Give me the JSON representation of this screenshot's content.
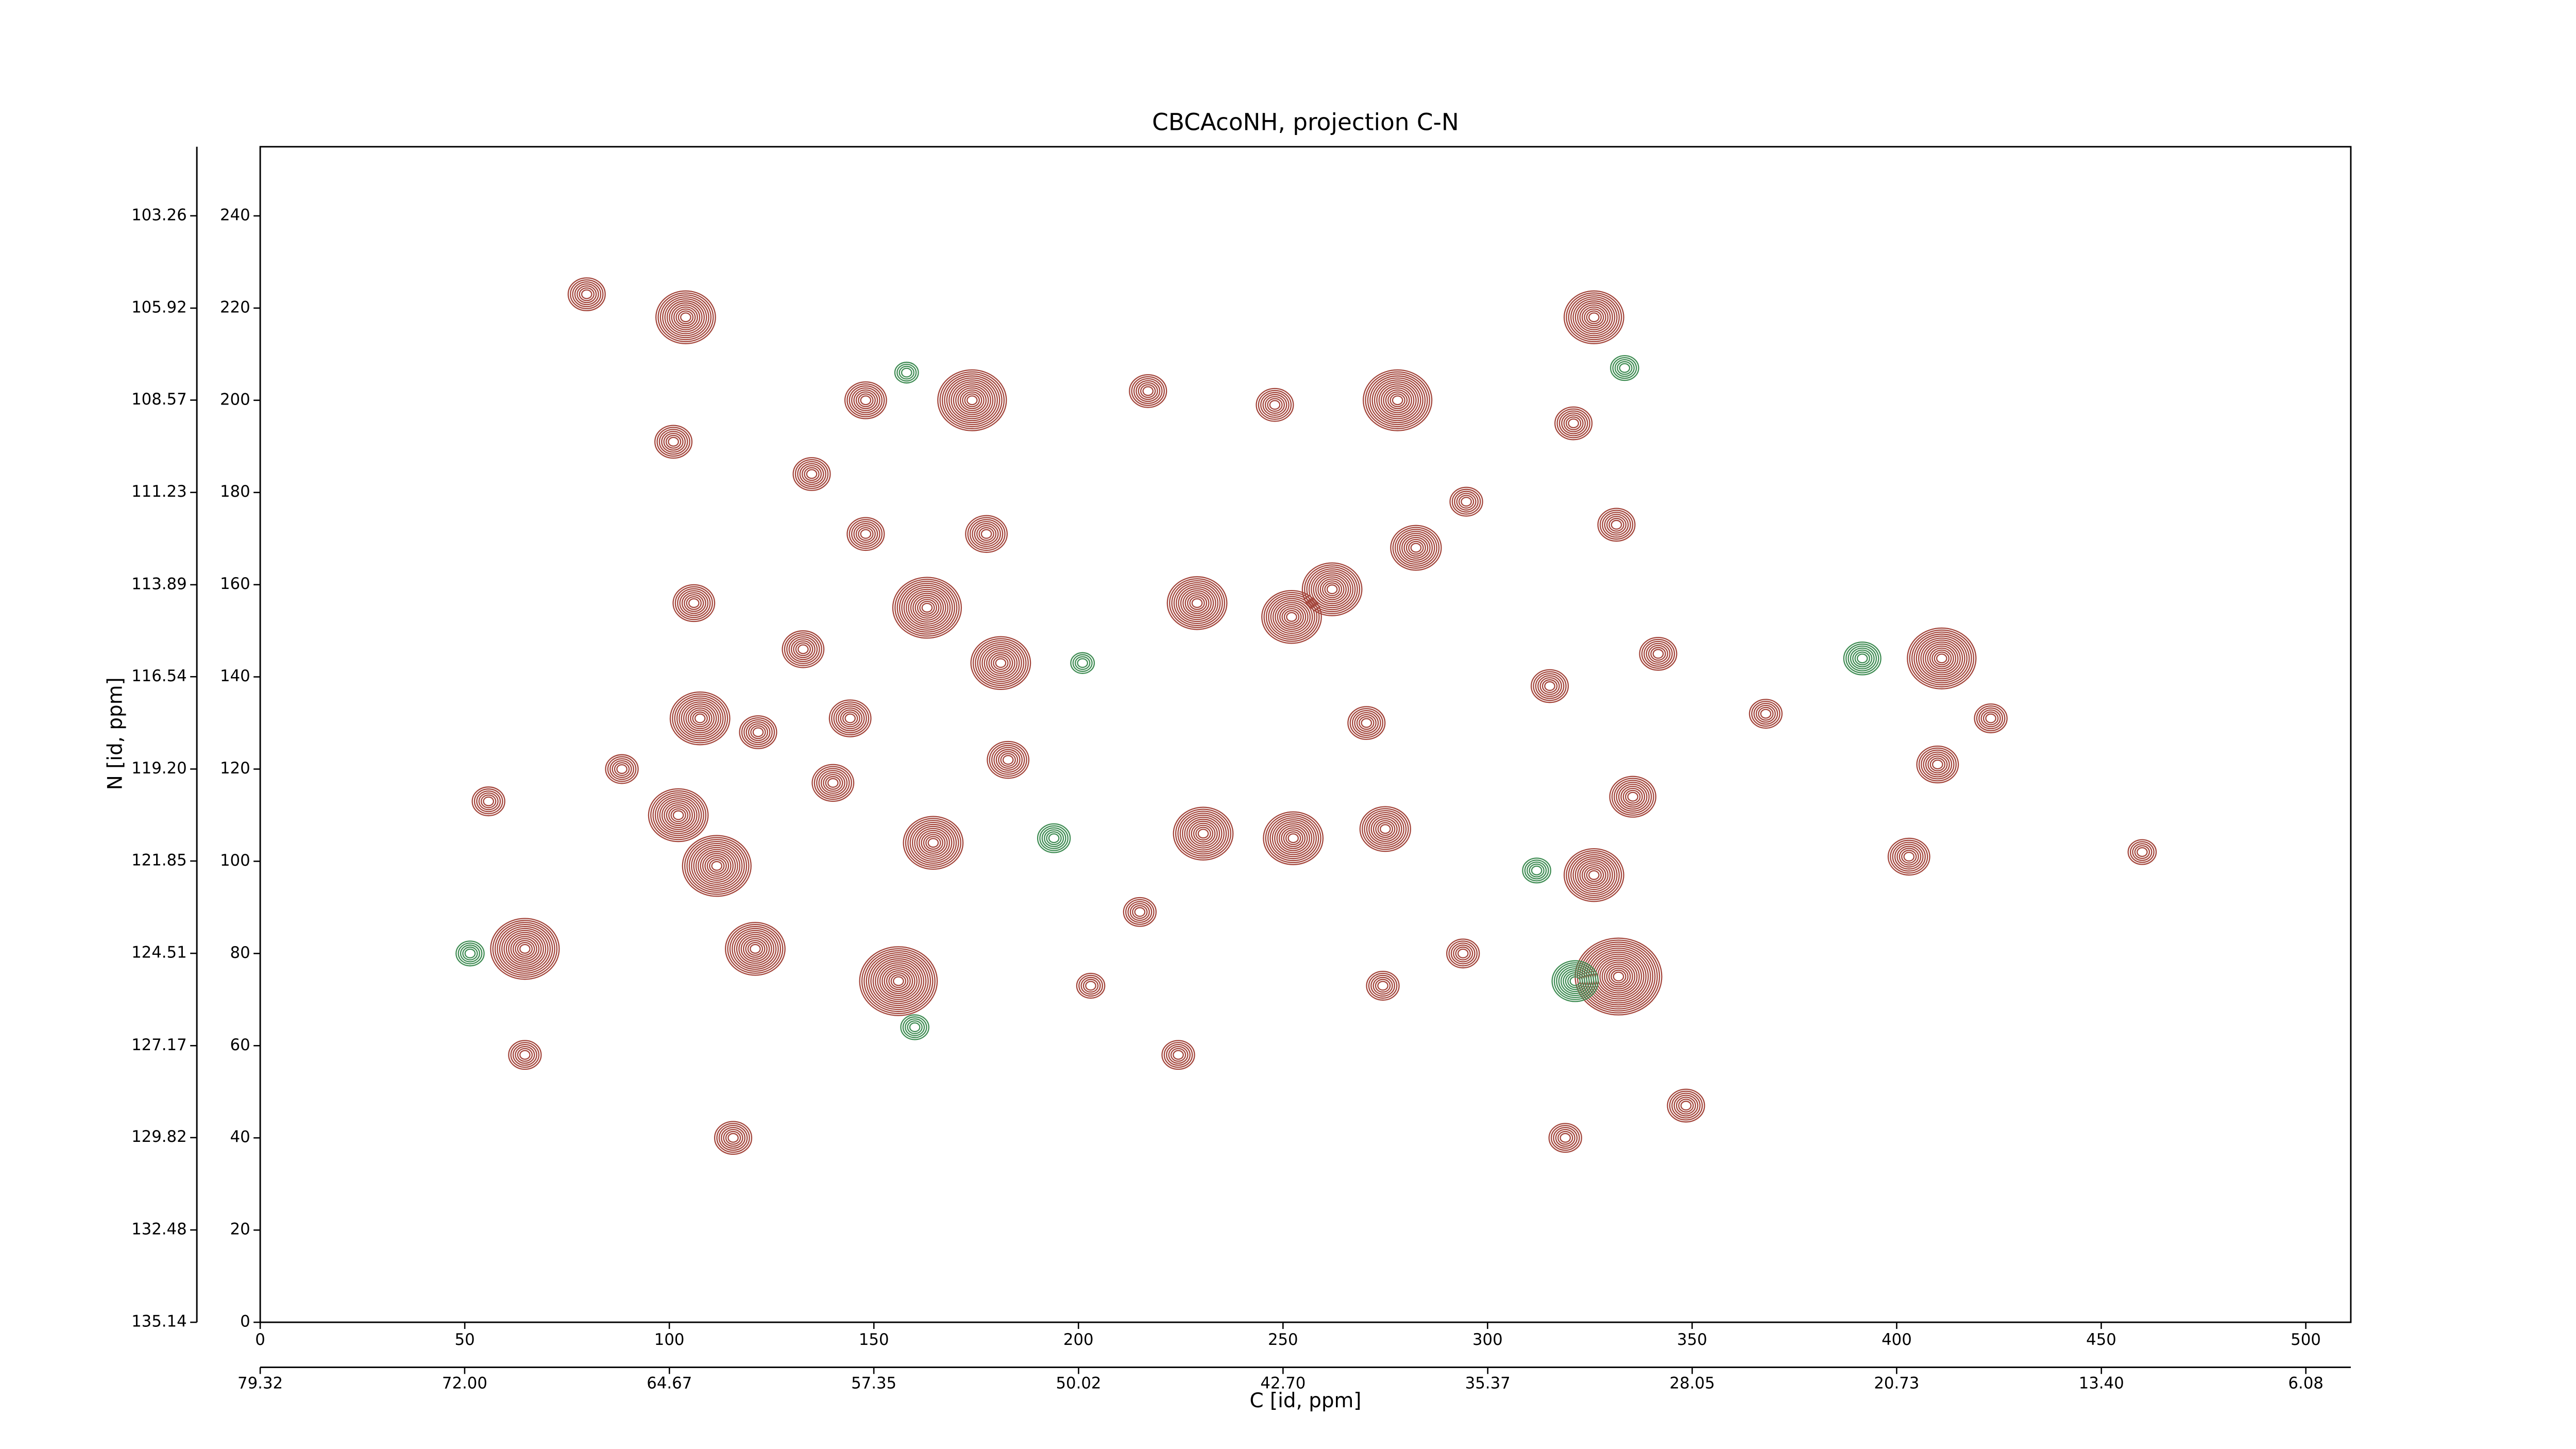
{
  "chart_data": {
    "type": "contour",
    "title": "CBCAcoNH, projection C-N",
    "x_label": "C [id, ppm]",
    "y_label": "N [id, ppm]",
    "xlim": [
      0,
      511
    ],
    "ylim": [
      0,
      255
    ],
    "xticks": [
      0,
      50,
      100,
      150,
      200,
      250,
      300,
      350,
      400,
      450,
      500
    ],
    "yticks": [
      0,
      20,
      40,
      60,
      80,
      100,
      120,
      140,
      160,
      180,
      200,
      220,
      240
    ],
    "x2lim": [
      79.32,
      4.47
    ],
    "x2ticks": [
      79.32,
      {
        "value": 72,
        "label": "72.00"
      },
      64.67,
      57.35,
      50.02,
      {
        "value": 42.7,
        "label": "42.70"
      },
      35.37,
      28.05,
      20.73,
      {
        "value": 13.4,
        "label": "13.40"
      },
      6.08
    ],
    "y2lim": [
      135.14,
      101.27
    ],
    "y2ticks": [
      135.14,
      132.48,
      129.82,
      127.17,
      124.51,
      121.85,
      {
        "value": 119.2,
        "label": "119.20"
      },
      116.54,
      113.89,
      111.23,
      108.57,
      105.92,
      103.26
    ],
    "series": [
      {
        "color": "#a3453b",
        "x": [
          64.7,
          121,
          156,
          107.5,
          106,
          104,
          174,
          163,
          181,
          229,
          252.1,
          262,
          278,
          326,
          411,
          410,
          403,
          332,
          326,
          252.5,
          230.5,
          275,
          164.5,
          111.6,
          102.2,
          79.8,
          101,
          134.8,
          148,
          217,
          248,
          282.5,
          270.4,
          315.2,
          341.7,
          335.5,
          368,
          423,
          115.6,
          64.7,
          55.8,
          88.4,
          215,
          348.5,
          319,
          224.4,
          203,
          274.4,
          294,
          460,
          132.7,
          144.2,
          182.8,
          121.7,
          140,
          177.5,
          148,
          321,
          331.5,
          294.8
        ],
        "y": [
          81,
          81,
          74,
          131,
          156,
          218,
          200,
          155,
          143,
          156,
          153,
          159,
          200,
          218,
          144,
          121,
          101,
          75,
          97,
          105,
          106,
          107,
          104,
          99,
          110,
          223,
          191,
          184,
          200,
          202,
          199,
          168,
          130,
          138,
          145,
          114,
          132,
          131,
          40,
          58,
          113,
          120,
          89,
          47,
          40,
          58,
          73,
          73,
          80,
          102,
          146,
          131,
          122,
          128,
          117,
          171,
          171,
          195,
          173,
          178
        ],
        "levels": [
          14,
          12,
          16,
          12,
          8,
          12,
          14,
          14,
          12,
          12,
          12,
          12,
          14,
          12,
          14,
          8,
          8,
          18,
          12,
          12,
          12,
          10,
          12,
          14,
          12,
          7,
          7,
          7,
          8,
          7,
          7,
          10,
          7,
          7,
          7,
          9,
          6,
          6,
          7,
          6,
          6,
          6,
          6,
          7,
          6,
          6,
          5,
          6,
          6,
          5,
          8,
          8,
          8,
          7,
          8,
          8,
          7,
          7,
          7,
          6
        ]
      },
      {
        "color": "#3f8c53",
        "x": [
          51.3,
          321.4,
          391.6,
          194,
          158,
          333.5,
          201,
          160,
          312
        ],
        "y": [
          80,
          74,
          144,
          105,
          206,
          207,
          143,
          64,
          98
        ],
        "levels": [
          5,
          9,
          7,
          6,
          4,
          5,
          4,
          5,
          5
        ]
      }
    ]
  }
}
